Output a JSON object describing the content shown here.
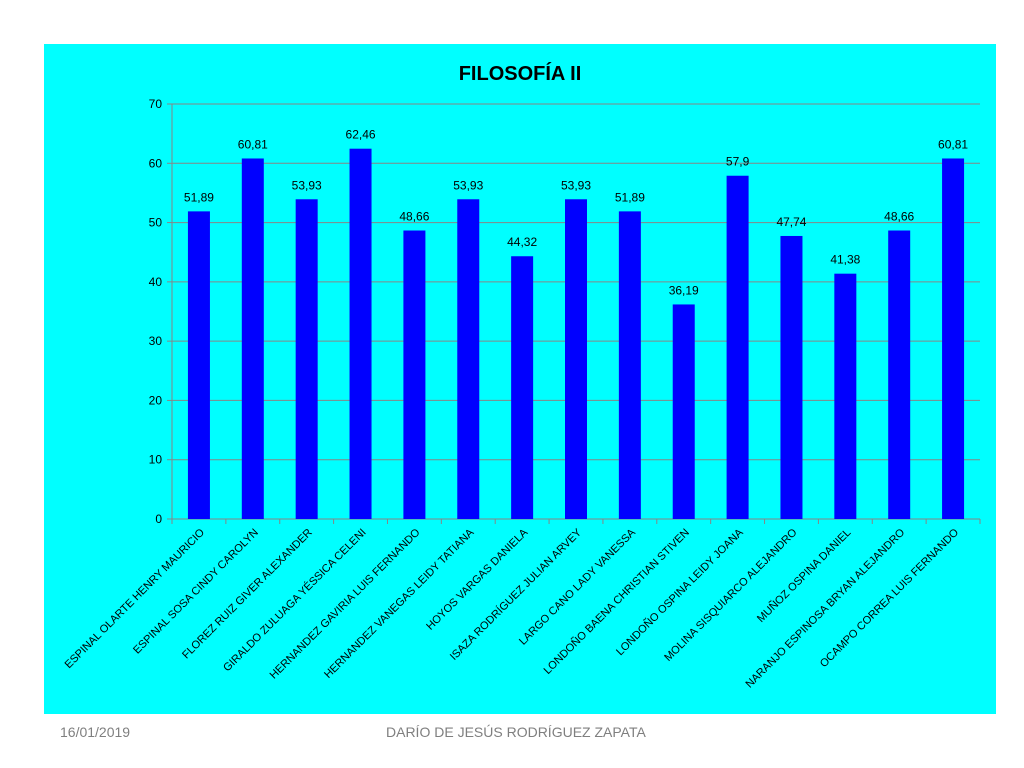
{
  "footer": {
    "date": "16/01/2019",
    "author": "DARÍO DE JESÚS RODRÍGUEZ ZAPATA"
  },
  "colors": {
    "panel_background": "#00ffff",
    "bar": "#0000ff",
    "gridline": "#868686",
    "text": "#000000"
  },
  "chart_data": {
    "type": "bar",
    "title": "FILOSOFÍA  II",
    "xlabel": "",
    "ylabel": "",
    "ylim": [
      0,
      70
    ],
    "yticks": [
      0,
      10,
      20,
      30,
      40,
      50,
      60,
      70
    ],
    "grid": true,
    "legend": "none",
    "categories": [
      "ESPINAL OLARTE HENRY MAURICIO",
      "ESPINAL SOSA CINDY CAROLYN",
      "FLOREZ RUIZ GIVER ALEXANDER",
      "GIRALDO ZULUAGA YÉSSICA CELENI",
      "HERNANDEZ GAVIRIA LUIS FERNANDO",
      "HERNANDEZ VANEGAS LEIDY TATIANA",
      "HOYOS VARGAS DANIELA",
      "ISAZA RODRÍGUEZ JULIAN ARVEY",
      "LARGO CANO LADY VANESSA",
      "LONDOÑO BAENA CHRISTIAN STIVEN",
      "LONDOÑO OSPINA LEIDY JOANA",
      "MOLINA SISQUIARCO ALEJANDRO",
      "MUÑOZ OSPINA DANIEL",
      "NARANJO ESPINOSA BRYAN ALEJANDRO",
      "OCAMPO CORREA LUIS FERNANDO"
    ],
    "values": [
      51.89,
      60.81,
      53.93,
      62.46,
      48.66,
      53.93,
      44.32,
      53.93,
      51.89,
      36.19,
      57.9,
      47.74,
      41.38,
      48.66,
      60.81
    ],
    "data_labels": [
      "51,89",
      "60,81",
      "53,93",
      "62,46",
      "48,66",
      "53,93",
      "44,32",
      "53,93",
      "51,89",
      "36,19",
      "57,9",
      "47,74",
      "41,38",
      "48,66",
      "60,81"
    ]
  }
}
